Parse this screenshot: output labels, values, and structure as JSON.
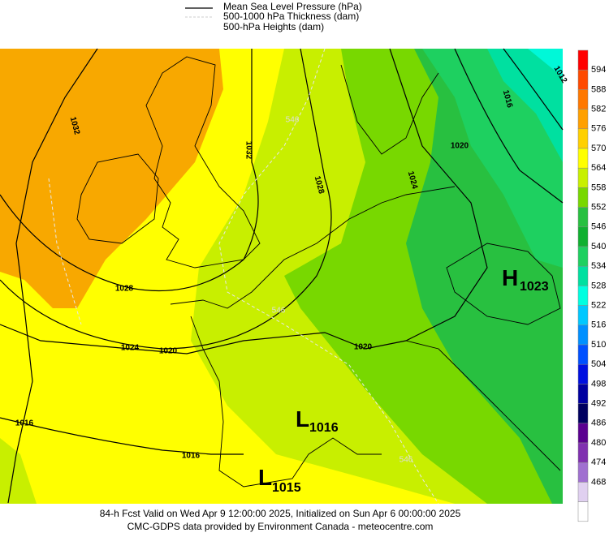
{
  "legend": [
    "Mean Sea Level Pressure (hPa)",
    "500-1000 hPa Thickness (dam)",
    "500-hPa Heights (dam)"
  ],
  "colorbar": {
    "labels": [
      594,
      588,
      582,
      576,
      570,
      564,
      558,
      552,
      546,
      540,
      534,
      528,
      522,
      516,
      510,
      504,
      498,
      492,
      486,
      480,
      474,
      468
    ]
  },
  "map": {
    "isobar_labels": [
      "1032",
      "1032",
      "1028",
      "1024",
      "1020",
      "1016",
      "1012",
      "1028",
      "1024",
      "1020",
      "1020",
      "1016",
      "1016"
    ],
    "thickness_labels": [
      "546",
      "546",
      "546"
    ],
    "centers": [
      {
        "letter": "H",
        "value": "1023"
      },
      {
        "letter": "L",
        "value": "1016"
      },
      {
        "letter": "L",
        "value": "1015"
      }
    ]
  },
  "footer": [
    "84-h Fcst Valid on Wed Apr  9 12:00:00 2025, Initialized on Sun Apr  6 00:00:00 2025",
    "CMC-GDPS data provided by Environment Canada - meteocentre.com"
  ]
}
